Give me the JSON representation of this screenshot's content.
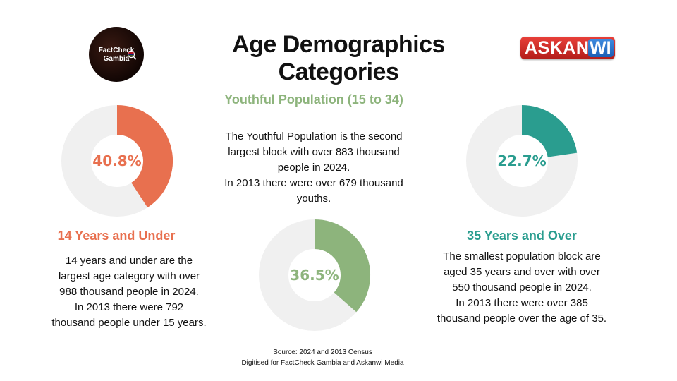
{
  "header": {
    "title": "Age Demographics Categories",
    "logo_left_line1": "FactCheck",
    "logo_left_line2": "Gambia",
    "logo_right_part1": "ASKAN",
    "logo_right_part2": "WI"
  },
  "chart_data": [
    {
      "type": "pie",
      "title": "14 Years and Under",
      "values": [
        40.8
      ],
      "value_label": "40.8%",
      "color": "#e8704f",
      "track_color": "#f0f0f0"
    },
    {
      "type": "pie",
      "title": "Youthful Population (15 to 34)",
      "values": [
        36.5
      ],
      "value_label": "36.5%",
      "color": "#8db47c",
      "track_color": "#f0f0f0"
    },
    {
      "type": "pie",
      "title": "35 Years and Over",
      "values": [
        22.7
      ],
      "value_label": "22.7%",
      "color": "#2a9d8f",
      "track_color": "#f0f0f0"
    }
  ],
  "sections": {
    "under14": {
      "heading": "14 Years and Under",
      "lines": [
        "14 years and under are the",
        "largest age category with over",
        "988 thousand people in 2024.",
        "In 2013 there were 792",
        "thousand people under 15 years."
      ]
    },
    "youth": {
      "heading": "Youthful Population (15 to 34)",
      "lines": [
        "The Youthful Population is the second",
        "largest block with over 883 thousand",
        "people in 2024.",
        "In 2013 there were over 679 thousand",
        "youths."
      ]
    },
    "over35": {
      "heading": "35 Years and Over",
      "lines": [
        "The smallest population block are",
        "aged 35 years and over with over",
        "550 thousand people in 2024.",
        "In 2013 there were over 385",
        "thousand people over the age of 35."
      ]
    }
  },
  "footer": {
    "source_line1": "Source: 2024 and 2013 Census",
    "source_line2": "Digitised for FactCheck Gambia and Askanwi Media"
  }
}
